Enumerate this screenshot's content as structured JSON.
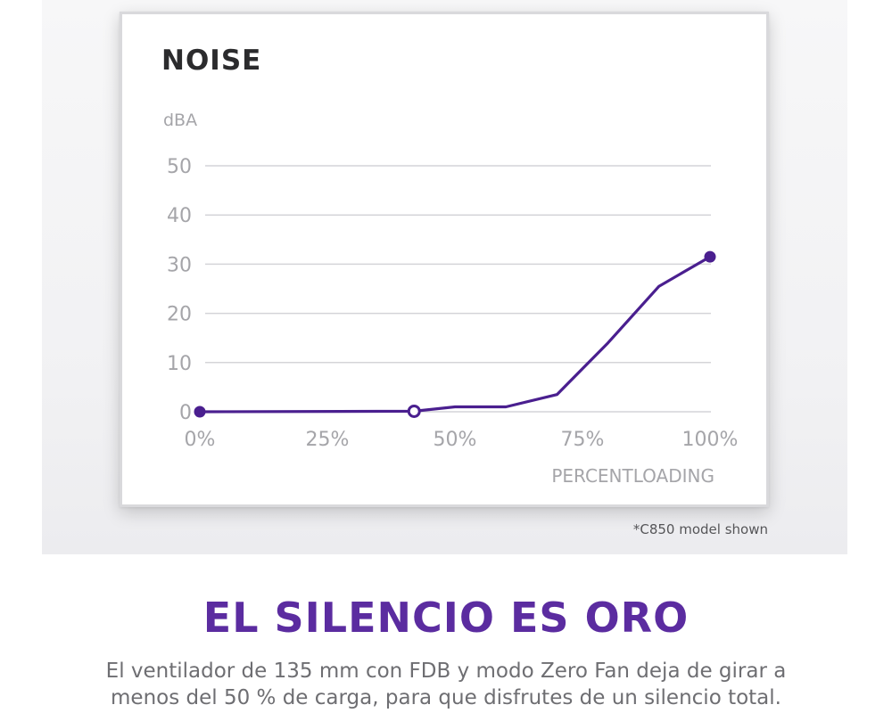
{
  "colors": {
    "accent": "#5b2ca0",
    "line": "#4a1f8f",
    "grid": "#d4d4d8",
    "axis_text": "#a5a5a9",
    "title": "#2b2b2d"
  },
  "chart_data": {
    "type": "line",
    "title": "NOISE",
    "ylabel": "dBA",
    "xlabel": "PERCENTLOADING",
    "ylim": [
      0,
      50
    ],
    "xlim": [
      0,
      100
    ],
    "yticks": [
      0,
      10,
      20,
      30,
      40,
      50
    ],
    "xticks": [
      {
        "value": 0,
        "label": "0%"
      },
      {
        "value": 25,
        "label": "25%"
      },
      {
        "value": 50,
        "label": "50%"
      },
      {
        "value": 75,
        "label": "75%"
      },
      {
        "value": 100,
        "label": "100%"
      }
    ],
    "grid": true,
    "series": [
      {
        "name": "Noise",
        "points": [
          {
            "x": 0,
            "y": 0
          },
          {
            "x": 42,
            "y": 0.1
          },
          {
            "x": 50,
            "y": 1
          },
          {
            "x": 60,
            "y": 1
          },
          {
            "x": 70,
            "y": 3.5
          },
          {
            "x": 80,
            "y": 14
          },
          {
            "x": 90,
            "y": 25.5
          },
          {
            "x": 100,
            "y": 31.5
          }
        ],
        "markers": [
          {
            "x": 0,
            "y": 0,
            "style": "filled"
          },
          {
            "x": 42,
            "y": 0.1,
            "style": "hollow"
          },
          {
            "x": 100,
            "y": 31.5,
            "style": "filled"
          }
        ]
      }
    ]
  },
  "footnote": "*C850 model shown",
  "headline": "EL SILENCIO ES ORO",
  "body": "El ventilador de 135 mm con FDB y modo Zero Fan deja de girar a menos del 50 % de carga, para que disfrutes de un silencio total."
}
